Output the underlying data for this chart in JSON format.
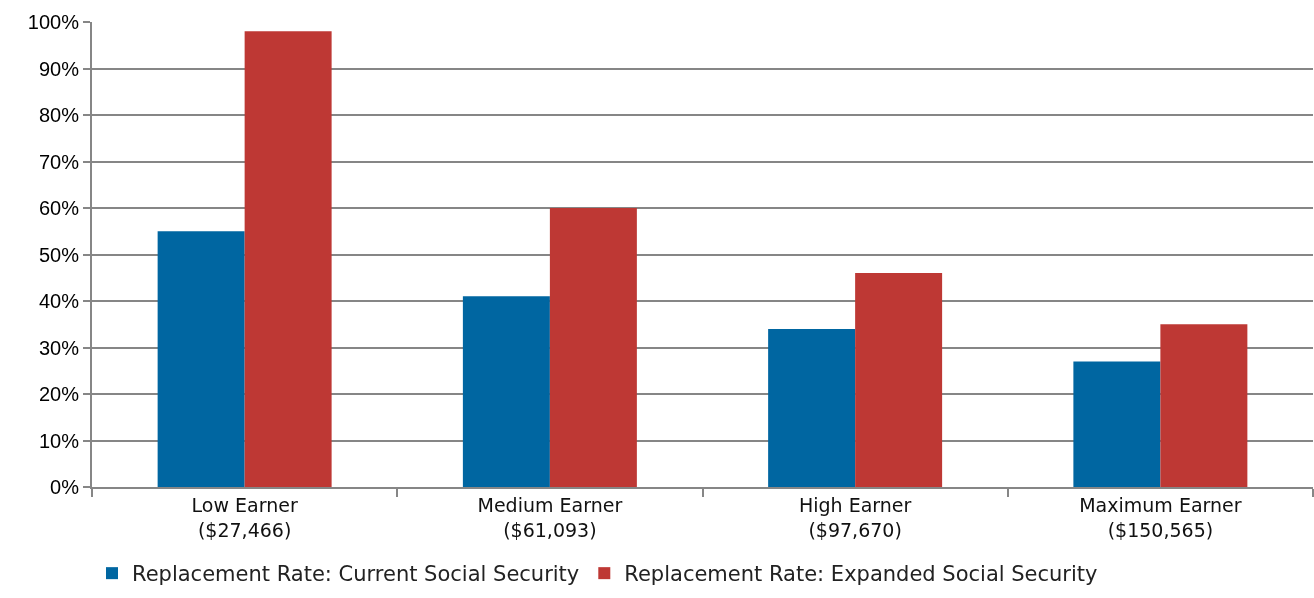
{
  "chart_data": {
    "type": "bar",
    "categories": [
      "Low Earner\n($27,466)",
      "Medium Earner\n($61,093)",
      "High Earner\n($97,670)",
      "Maximum Earner\n($150,565)"
    ],
    "series": [
      {
        "name": "Replacement Rate: Current Social Security",
        "color": "#0066a1",
        "values": [
          55,
          41,
          34,
          27
        ]
      },
      {
        "name": "Replacement Rate: Expanded Social Security",
        "color": "#be3834",
        "values": [
          98,
          60,
          46,
          35
        ]
      }
    ],
    "ylim": [
      0,
      100
    ],
    "yticks": [
      {
        "value": 0,
        "label": "0%"
      },
      {
        "value": 10,
        "label": "10%"
      },
      {
        "value": 20,
        "label": "20%"
      },
      {
        "value": 30,
        "label": "30%"
      },
      {
        "value": 40,
        "label": "40%"
      },
      {
        "value": 50,
        "label": "50%"
      },
      {
        "value": 60,
        "label": "60%"
      },
      {
        "value": 70,
        "label": "70%"
      },
      {
        "value": 80,
        "label": "80%"
      },
      {
        "value": 90,
        "label": "90%"
      },
      {
        "value": 100,
        "label": "100%"
      }
    ],
    "grid": "y",
    "legend": "bottom"
  }
}
